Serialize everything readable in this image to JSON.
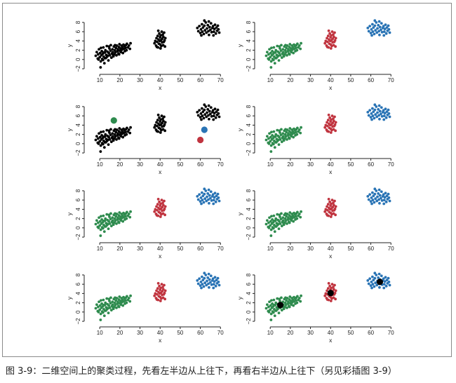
{
  "caption": {
    "figure": "图 3-9：",
    "text": "二维空间上的聚类过程，先看左半边从上往下，再看右半边从上往下（另见彩插图 3-9）"
  },
  "colors": {
    "unassigned": "#000000",
    "green": "#2e8b4e",
    "red": "#c0343f",
    "blue": "#2a74b5"
  },
  "chart_data": [
    {
      "type": "scatter",
      "panel": 1,
      "stage": "initial data",
      "xlabel": "x",
      "ylabel": "y",
      "xlim": [
        4,
        72
      ],
      "ylim": [
        -2.6,
        8.6
      ],
      "x_ticks": [
        10,
        20,
        30,
        40,
        50,
        60,
        70
      ],
      "y_ticks": [
        -2,
        0,
        2,
        4,
        6,
        8
      ],
      "point_colors": {
        "A": "unassigned",
        "B": "unassigned",
        "C": "unassigned"
      },
      "centroids": []
    },
    {
      "type": "scatter",
      "panel": 2,
      "stage": "random centroids",
      "xlabel": "x",
      "ylabel": "y",
      "xlim": [
        4,
        72
      ],
      "ylim": [
        -2.6,
        8.6
      ],
      "x_ticks": [
        10,
        20,
        30,
        40,
        50,
        60,
        70
      ],
      "y_ticks": [
        -2,
        0,
        2,
        4,
        6,
        8
      ],
      "point_colors": {
        "A": "unassigned",
        "B": "unassigned",
        "C": "unassigned"
      },
      "centroids": [
        {
          "x": 17,
          "y": 5,
          "color": "green"
        },
        {
          "x": 62,
          "y": 3,
          "color": "blue"
        },
        {
          "x": 60,
          "y": 0.8,
          "color": "red"
        }
      ]
    },
    {
      "type": "scatter",
      "panel": 3,
      "stage": "assignment",
      "xlabel": "x",
      "ylabel": "y",
      "xlim": [
        4,
        72
      ],
      "ylim": [
        -2.6,
        8.6
      ],
      "x_ticks": [
        10,
        20,
        30,
        40,
        50,
        60,
        70
      ],
      "y_ticks": [
        -2,
        0,
        2,
        4,
        6,
        8
      ],
      "point_colors": {
        "A": "green",
        "B": "red",
        "C": "blue"
      },
      "centroids": []
    },
    {
      "type": "scatter",
      "panel": 4,
      "stage": "assignment",
      "xlabel": "x",
      "ylabel": "y",
      "xlim": [
        4,
        72
      ],
      "ylim": [
        -2.6,
        8.6
      ],
      "x_ticks": [
        10,
        20,
        30,
        40,
        50,
        60,
        70
      ],
      "y_ticks": [
        -2,
        0,
        2,
        4,
        6,
        8
      ],
      "point_colors": {
        "A": "green",
        "B": "red",
        "C": "blue"
      },
      "centroids": []
    },
    {
      "type": "scatter",
      "panel": 5,
      "stage": "assignment",
      "xlabel": "x",
      "ylabel": "y",
      "xlim": [
        4,
        72
      ],
      "ylim": [
        -2.6,
        8.6
      ],
      "x_ticks": [
        10,
        20,
        30,
        40,
        50,
        60,
        70
      ],
      "y_ticks": [
        -2,
        0,
        2,
        4,
        6,
        8
      ],
      "point_colors": {
        "A": "green",
        "B": "red",
        "C": "blue"
      },
      "centroids": []
    },
    {
      "type": "scatter",
      "panel": 6,
      "stage": "assignment",
      "xlabel": "x",
      "ylabel": "y",
      "xlim": [
        4,
        72
      ],
      "ylim": [
        -2.6,
        8.6
      ],
      "x_ticks": [
        10,
        20,
        30,
        40,
        50,
        60,
        70
      ],
      "y_ticks": [
        -2,
        0,
        2,
        4,
        6,
        8
      ],
      "point_colors": {
        "A": "green",
        "B": "red",
        "C": "blue"
      },
      "centroids": []
    },
    {
      "type": "scatter",
      "panel": 7,
      "stage": "assignment",
      "xlabel": "x",
      "ylabel": "y",
      "xlim": [
        4,
        72
      ],
      "ylim": [
        -2.6,
        8.6
      ],
      "x_ticks": [
        10,
        20,
        30,
        40,
        50,
        60,
        70
      ],
      "y_ticks": [
        -2,
        0,
        2,
        4,
        6,
        8
      ],
      "point_colors": {
        "A": "green",
        "B": "red",
        "C": "blue"
      },
      "centroids": []
    },
    {
      "type": "scatter",
      "panel": 8,
      "stage": "final centroids",
      "xlabel": "x",
      "ylabel": "y",
      "xlim": [
        4,
        72
      ],
      "ylim": [
        -2.6,
        8.6
      ],
      "x_ticks": [
        10,
        20,
        30,
        40,
        50,
        60,
        70
      ],
      "y_ticks": [
        -2,
        0,
        2,
        4,
        6,
        8
      ],
      "point_colors": {
        "A": "green",
        "B": "red",
        "C": "blue"
      },
      "centroids": [
        {
          "x": 15,
          "y": 1.5,
          "color": "unassigned"
        },
        {
          "x": 40,
          "y": 4.1,
          "color": "unassigned"
        },
        {
          "x": 64.5,
          "y": 6.5,
          "color": "unassigned"
        }
      ]
    }
  ],
  "clusters": {
    "A": [
      [
        8,
        0.8
      ],
      [
        8.5,
        1.6
      ],
      [
        9,
        0.2
      ],
      [
        9.2,
        1.1
      ],
      [
        9.6,
        2.2
      ],
      [
        10,
        0.5
      ],
      [
        10.2,
        1.4
      ],
      [
        10.5,
        -0.4
      ],
      [
        10.8,
        0.9
      ],
      [
        11,
        1.8
      ],
      [
        11.2,
        0.1
      ],
      [
        11.5,
        1.2
      ],
      [
        11.8,
        2.6
      ],
      [
        12,
        0.6
      ],
      [
        12.3,
        -0.8
      ],
      [
        12.5,
        1.5
      ],
      [
        12.8,
        2.0
      ],
      [
        13,
        0.3
      ],
      [
        13.2,
        1.0
      ],
      [
        13.5,
        2.9
      ],
      [
        13.8,
        1.7
      ],
      [
        14,
        0.8
      ],
      [
        14.3,
        -0.2
      ],
      [
        14.5,
        1.4
      ],
      [
        14.8,
        2.4
      ],
      [
        15,
        0.9
      ],
      [
        15.3,
        1.9
      ],
      [
        15.5,
        3.1
      ],
      [
        15.8,
        0.4
      ],
      [
        16,
        1.3
      ],
      [
        16.3,
        2.2
      ],
      [
        16.5,
        1.6
      ],
      [
        16.8,
        0.7
      ],
      [
        17,
        2.8
      ],
      [
        17.2,
        1.1
      ],
      [
        17.5,
        2.0
      ],
      [
        17.8,
        1.5
      ],
      [
        18,
        2.5
      ],
      [
        18.3,
        0.9
      ],
      [
        18.5,
        3.0
      ],
      [
        18.8,
        1.8
      ],
      [
        19,
        2.2
      ],
      [
        19.3,
        1.3
      ],
      [
        19.5,
        2.7
      ],
      [
        19.8,
        3.3
      ],
      [
        20,
        1.9
      ],
      [
        20.3,
        2.4
      ],
      [
        20.5,
        1.6
      ],
      [
        20.8,
        3.0
      ],
      [
        21,
        2.1
      ],
      [
        21.3,
        2.6
      ],
      [
        21.5,
        1.4
      ],
      [
        21.8,
        3.2
      ],
      [
        22,
        2.3
      ],
      [
        22.3,
        2.9
      ],
      [
        22.5,
        1.8
      ],
      [
        22.8,
        2.5
      ],
      [
        23,
        3.1
      ],
      [
        23.3,
        2.0
      ],
      [
        23.5,
        3.4
      ],
      [
        24,
        2.6
      ],
      [
        24.5,
        3.0
      ],
      [
        25,
        2.3
      ],
      [
        25.3,
        3.5
      ],
      [
        9.4,
        0.0
      ],
      [
        10.6,
        2.5
      ],
      [
        11.6,
        -0.1
      ],
      [
        12.6,
        0.3
      ],
      [
        13.6,
        0.6
      ],
      [
        16.6,
        1.0
      ],
      [
        17.6,
        3.1
      ],
      [
        10.4,
        -1.7
      ],
      [
        11.9,
        1.5
      ],
      [
        14.6,
        2.8
      ],
      [
        19.6,
        1.1
      ]
    ],
    "B": [
      [
        37.2,
        3.5
      ],
      [
        37.6,
        4.0
      ],
      [
        38.0,
        3.0
      ],
      [
        38.2,
        4.6
      ],
      [
        38.5,
        3.8
      ],
      [
        38.8,
        5.1
      ],
      [
        39.0,
        2.6
      ],
      [
        39.2,
        4.3
      ],
      [
        39.4,
        3.4
      ],
      [
        39.6,
        5.6
      ],
      [
        39.8,
        4.0
      ],
      [
        40.0,
        4.8
      ],
      [
        40.1,
        3.2
      ],
      [
        40.3,
        5.2
      ],
      [
        40.5,
        4.2
      ],
      [
        40.6,
        2.9
      ],
      [
        40.8,
        6.0
      ],
      [
        41.0,
        3.7
      ],
      [
        41.1,
        4.5
      ],
      [
        41.3,
        5.4
      ],
      [
        41.5,
        3.1
      ],
      [
        41.6,
        4.9
      ],
      [
        41.8,
        3.8
      ],
      [
        42.0,
        5.8
      ],
      [
        42.2,
        4.1
      ],
      [
        42.4,
        2.8
      ],
      [
        42.6,
        4.6
      ],
      [
        39.1,
        6.2
      ],
      [
        40.2,
        2.4
      ],
      [
        38.4,
        2.7
      ]
    ],
    "C": [
      [
        58.5,
        6.8
      ],
      [
        59,
        6.1
      ],
      [
        59.5,
        7.2
      ],
      [
        60,
        5.7
      ],
      [
        60.3,
        6.5
      ],
      [
        60.8,
        7.6
      ],
      [
        61,
        6.0
      ],
      [
        61.3,
        6.9
      ],
      [
        61.7,
        5.5
      ],
      [
        62,
        7.3
      ],
      [
        62.3,
        6.3
      ],
      [
        62.7,
        8.0
      ],
      [
        63,
        5.8
      ],
      [
        63.3,
        6.7
      ],
      [
        63.7,
        7.4
      ],
      [
        64,
        6.1
      ],
      [
        64.3,
        5.3
      ],
      [
        64.6,
        7.0
      ],
      [
        65,
        6.4
      ],
      [
        65.3,
        7.8
      ],
      [
        65.6,
        5.9
      ],
      [
        66,
        6.8
      ],
      [
        66.3,
        7.2
      ],
      [
        66.7,
        6.0
      ],
      [
        67,
        6.6
      ],
      [
        67.3,
        7.5
      ],
      [
        67.7,
        5.6
      ],
      [
        68,
        6.9
      ],
      [
        68.3,
        6.2
      ],
      [
        68.7,
        7.3
      ],
      [
        69,
        6.5
      ],
      [
        69.4,
        5.8
      ],
      [
        62,
        8.4
      ],
      [
        64.2,
        8.2
      ],
      [
        60.5,
        5.2
      ],
      [
        66.5,
        5.2
      ]
    ]
  }
}
